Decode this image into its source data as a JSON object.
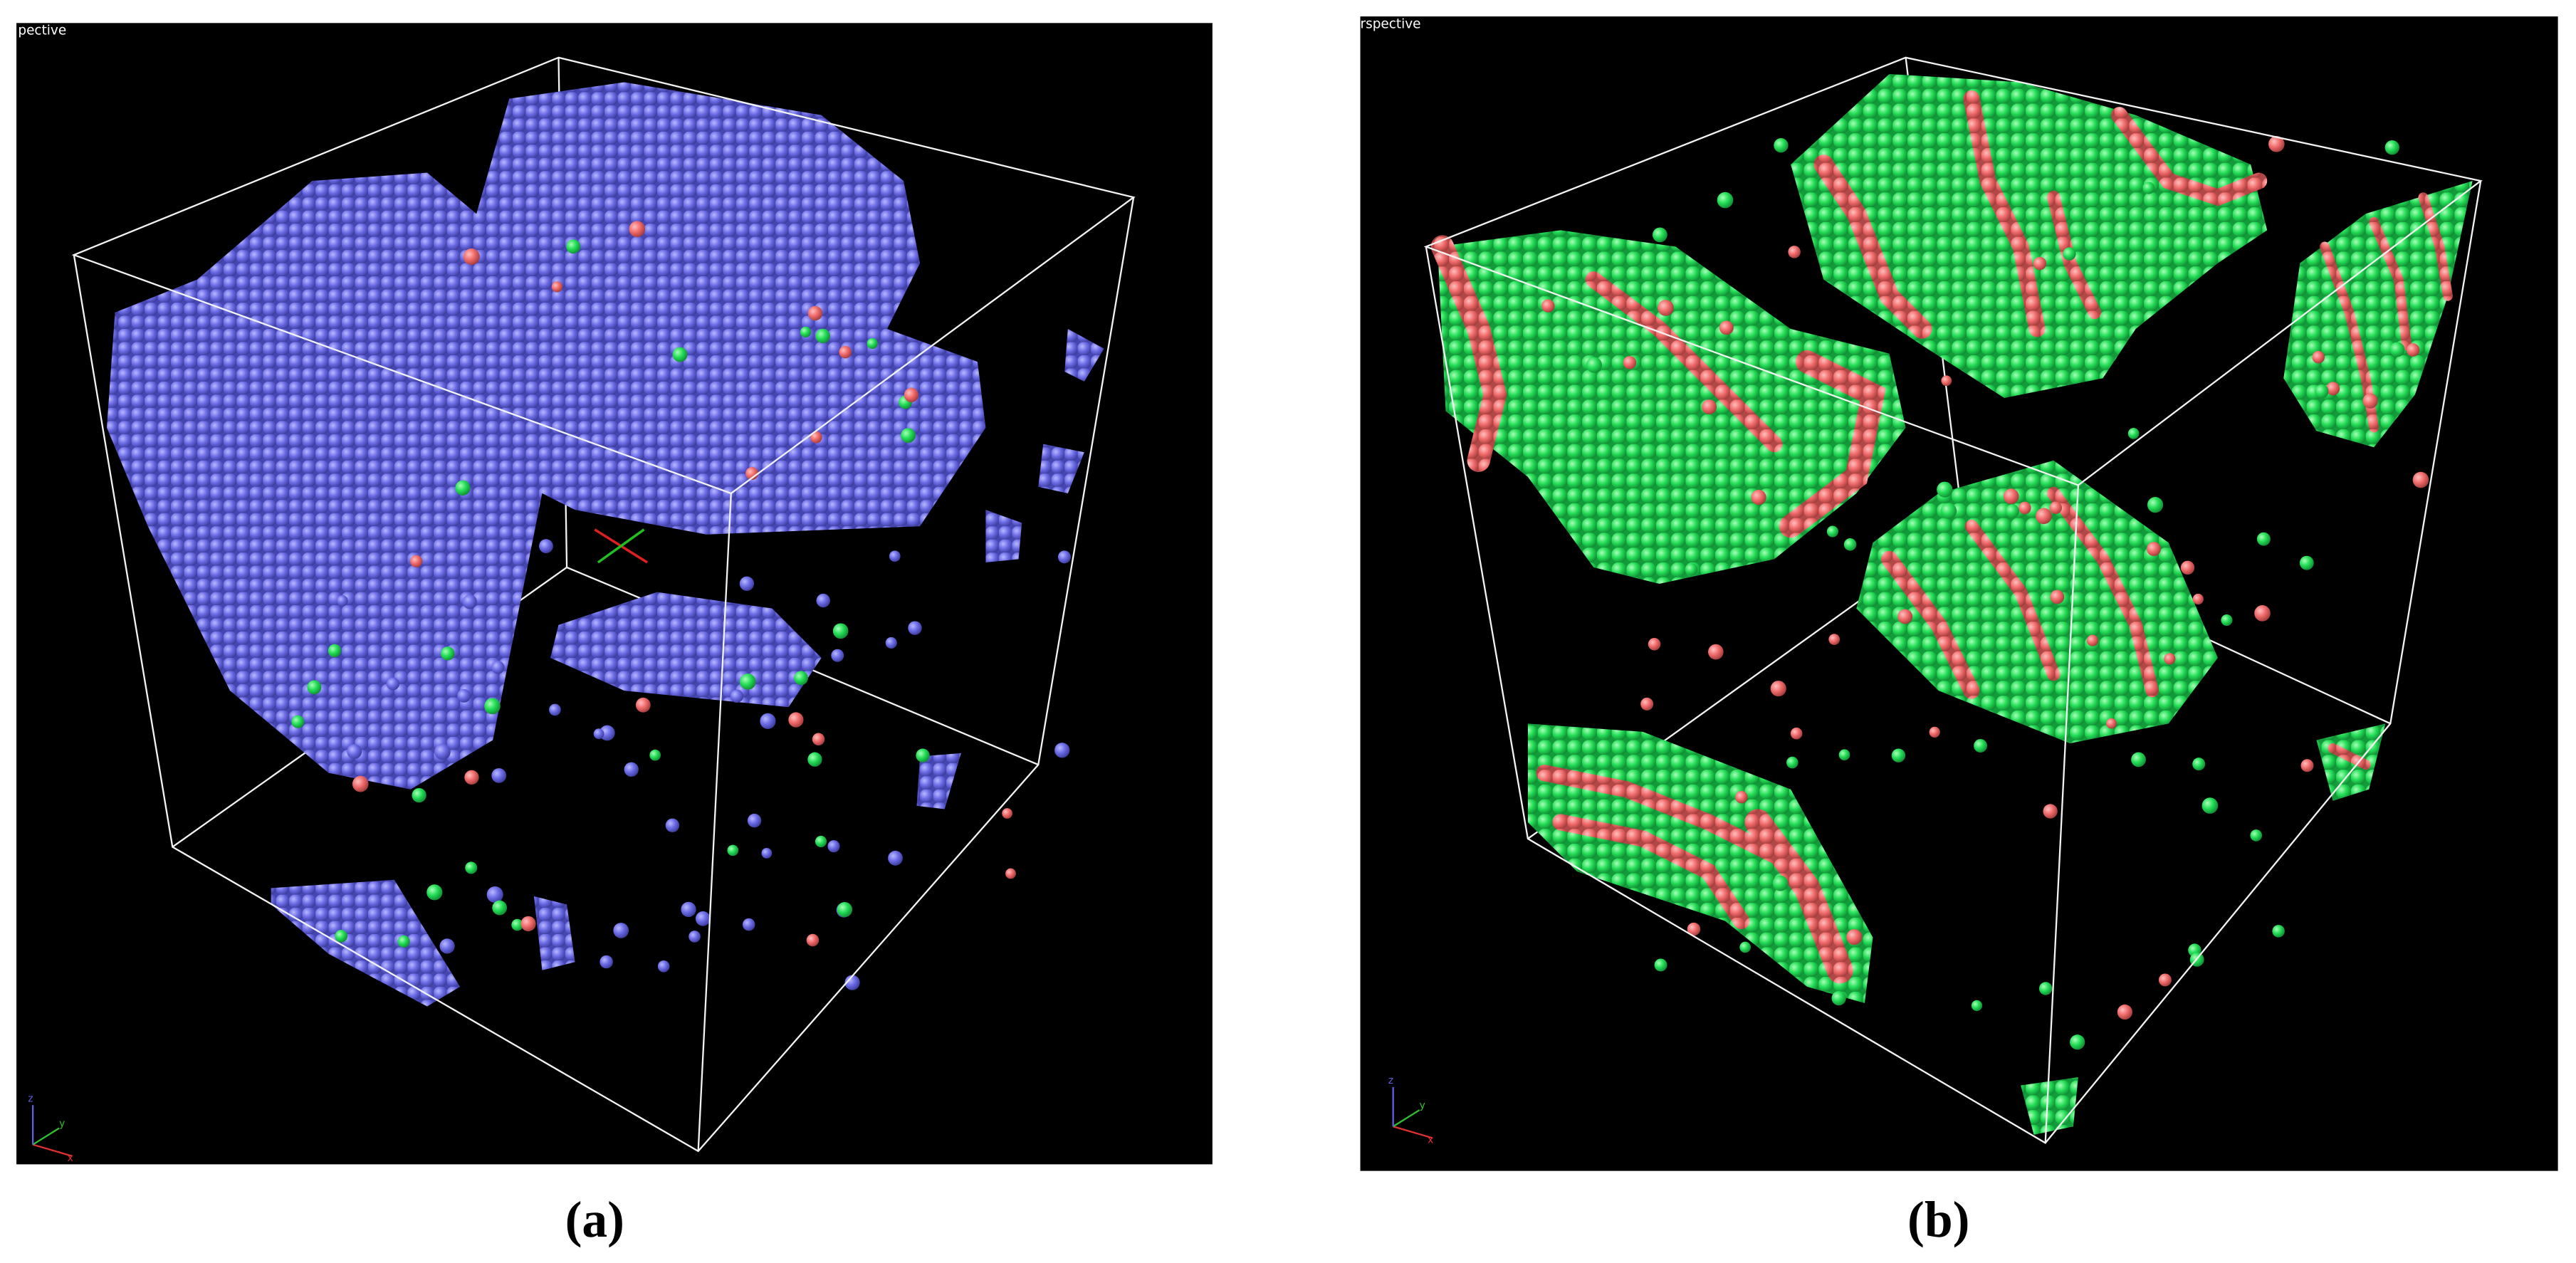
{
  "panels": [
    {
      "viewport_label": "pective",
      "axis_labels": [
        "x",
        "y",
        "z"
      ],
      "caption": "(a)"
    },
    {
      "viewport_label": "rspective",
      "axis_labels": [
        "x",
        "y",
        "z"
      ],
      "caption": "(b)"
    }
  ]
}
